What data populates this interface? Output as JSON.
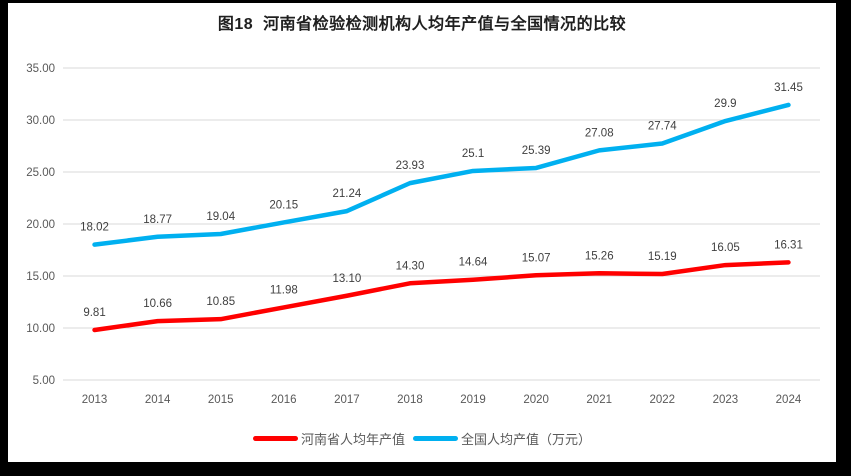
{
  "chart_data": {
    "type": "line",
    "title": "图18  河南省检验检测机构人均年产值与全国情况的比较",
    "categories": [
      "2013",
      "2014",
      "2015",
      "2016",
      "2017",
      "2018",
      "2019",
      "2020",
      "2021",
      "2022",
      "2023",
      "2024"
    ],
    "series": [
      {
        "name": "河南省人均年产值",
        "color": "#FF0000",
        "values": [
          9.81,
          10.66,
          10.85,
          11.98,
          13.1,
          14.3,
          14.64,
          15.07,
          15.26,
          15.19,
          16.05,
          16.31
        ],
        "labels": [
          "9.81",
          "10.66",
          "10.85",
          "11.98",
          "13.10",
          "14.30",
          "14.64",
          "15.07",
          "15.26",
          "15.19",
          "16.05",
          "16.31"
        ]
      },
      {
        "name": "全国人均产值（万元）",
        "color": "#00B0F0",
        "values": [
          18.02,
          18.77,
          19.04,
          20.15,
          21.24,
          23.93,
          25.1,
          25.39,
          27.08,
          27.74,
          29.9,
          31.45
        ],
        "labels": [
          "18.02",
          "18.77",
          "19.04",
          "20.15",
          "21.24",
          "23.93",
          "25.1",
          "25.39",
          "27.08",
          "27.74",
          "29.9",
          "31.45"
        ]
      }
    ],
    "xlabel": "",
    "ylabel": "",
    "ylim": [
      5,
      35
    ],
    "yticks": [
      "5.00",
      "10.00",
      "15.00",
      "20.00",
      "25.00",
      "30.00",
      "35.00"
    ],
    "grid": true,
    "grid_color": "#D9D9D9",
    "legend_position": "bottom"
  },
  "colors": {
    "frame": "#000000",
    "background": "#FFFFFF",
    "axis_text": "#595959",
    "data_label_text": "#404040",
    "title_text": "#1F1F1F"
  }
}
